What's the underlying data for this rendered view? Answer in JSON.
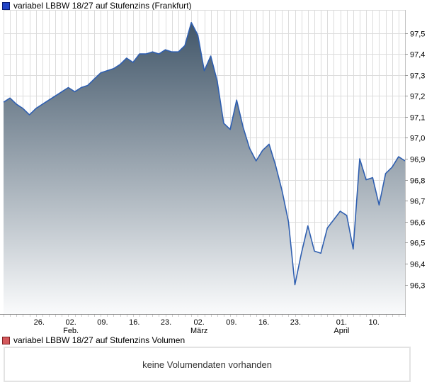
{
  "price_chart": {
    "legend_label": "variabel LBBW 18/27 auf Stufenzins (Frankfurt)",
    "legend_marker_color": "#2144c6",
    "legend_marker_border": "#0a1d72"
  },
  "volume_chart": {
    "legend_label": "variabel LBBW 18/27 auf Stufenzins Volumen",
    "legend_marker_color": "#d4585c",
    "legend_marker_border": "#7e2022",
    "message": "keine Volumendaten vorhanden"
  },
  "chart_data": {
    "type": "area",
    "title": "variabel LBBW 18/27 auf Stufenzins (Frankfurt)",
    "line_color": "#2f5fb0",
    "fill_top_color": "#415669",
    "fill_bottom_color": "#fafbfc",
    "grid_color": "#dcdcdc",
    "axis_line_color": "#8c8c8c",
    "right_axis_color": "#c0c0c0",
    "tick_color": "#999999",
    "day_tick_color": "#cccccc",
    "label_color": "#000000",
    "grid": true,
    "legend_position": "top-left",
    "ylim": [
      96.16,
      97.61
    ],
    "y_ticks": [
      {
        "value": 97.5,
        "label": "97,5"
      },
      {
        "value": 97.4,
        "label": "97,4"
      },
      {
        "value": 97.3,
        "label": "97,3"
      },
      {
        "value": 97.2,
        "label": "97,2"
      },
      {
        "value": 97.1,
        "label": "97,1"
      },
      {
        "value": 97.0,
        "label": "97,0"
      },
      {
        "value": 96.9,
        "label": "96,9"
      },
      {
        "value": 96.8,
        "label": "96,8"
      },
      {
        "value": 96.7,
        "label": "96,7"
      },
      {
        "value": 96.6,
        "label": "96,6"
      },
      {
        "value": 96.5,
        "label": "96,5"
      },
      {
        "value": 96.4,
        "label": "96,4"
      },
      {
        "value": 96.3,
        "label": "96,3"
      }
    ],
    "x_ticks": [
      {
        "day": 5.5,
        "label": "26.",
        "sub": ""
      },
      {
        "day": 10.4,
        "label": "02.",
        "sub": "Feb."
      },
      {
        "day": 15.3,
        "label": "09.",
        "sub": ""
      },
      {
        "day": 20.2,
        "label": "16.",
        "sub": ""
      },
      {
        "day": 25.1,
        "label": "23.",
        "sub": ""
      },
      {
        "day": 30.2,
        "label": "02.",
        "sub": "März"
      },
      {
        "day": 35.2,
        "label": "09.",
        "sub": ""
      },
      {
        "day": 40.2,
        "label": "16.",
        "sub": ""
      },
      {
        "day": 45.1,
        "label": "23.",
        "sub": ""
      },
      {
        "day": 52.2,
        "label": "01.",
        "sub": "April"
      },
      {
        "day": 57.2,
        "label": "10.",
        "sub": ""
      }
    ],
    "values": [
      97.17,
      97.19,
      97.16,
      97.14,
      97.11,
      97.14,
      97.16,
      97.18,
      97.2,
      97.22,
      97.24,
      97.22,
      97.24,
      97.25,
      97.28,
      97.31,
      97.32,
      97.33,
      97.35,
      97.38,
      97.36,
      97.4,
      97.4,
      97.41,
      97.4,
      97.42,
      97.41,
      97.41,
      97.44,
      97.55,
      97.49,
      97.32,
      97.39,
      97.27,
      97.07,
      97.04,
      97.18,
      97.05,
      96.95,
      96.89,
      96.94,
      96.97,
      96.87,
      96.75,
      96.6,
      96.3,
      96.45,
      96.58,
      96.46,
      96.45,
      96.57,
      96.61,
      96.65,
      96.63,
      96.47,
      96.9,
      96.8,
      96.81,
      96.68,
      96.83,
      96.86,
      96.91,
      96.89
    ]
  }
}
